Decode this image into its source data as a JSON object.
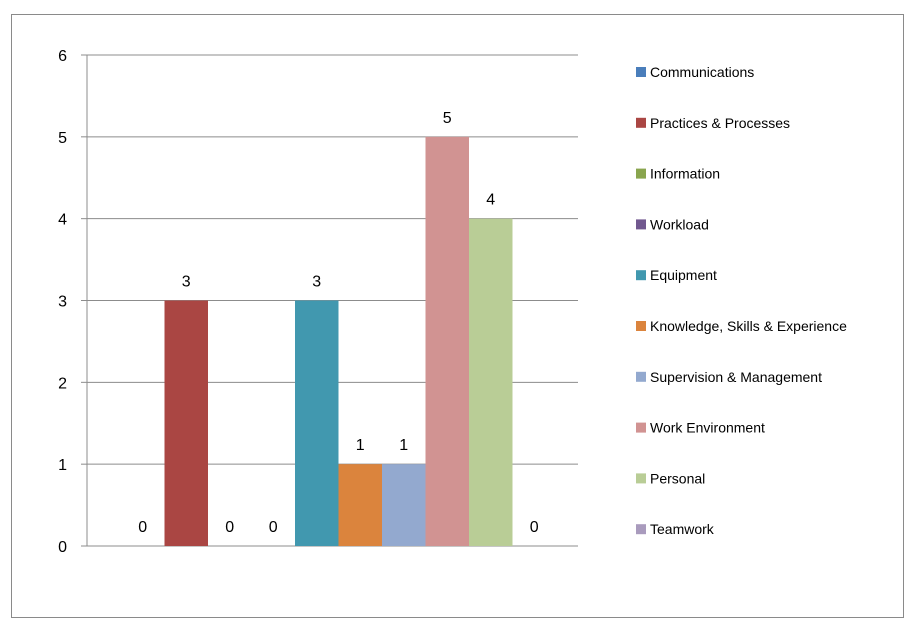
{
  "chart_data": {
    "type": "bar",
    "title": "",
    "xlabel": "",
    "ylabel": "",
    "ylim": [
      0,
      6
    ],
    "yticks": [
      0,
      1,
      2,
      3,
      4,
      5,
      6
    ],
    "grid": true,
    "legend_position": "right",
    "series": [
      {
        "name": "Communications",
        "value": 0,
        "color": "#4A7EBB"
      },
      {
        "name": "Practices & Processes",
        "value": 3,
        "color": "#AA4643"
      },
      {
        "name": "Information",
        "value": 0,
        "color": "#89A54E"
      },
      {
        "name": "Workload",
        "value": 0,
        "color": "#71588F"
      },
      {
        "name": "Equipment",
        "value": 3,
        "color": "#4198AF"
      },
      {
        "name": "Knowledge, Skills & Experience",
        "value": 1,
        "color": "#DB843D"
      },
      {
        "name": "Supervision & Management",
        "value": 1,
        "color": "#93A9CF"
      },
      {
        "name": "Work Environment",
        "value": 5,
        "color": "#D19392"
      },
      {
        "name": "Personal",
        "value": 4,
        "color": "#B9CD96"
      },
      {
        "name": "Teamwork",
        "value": 0,
        "color": "#A99BBD"
      }
    ]
  }
}
